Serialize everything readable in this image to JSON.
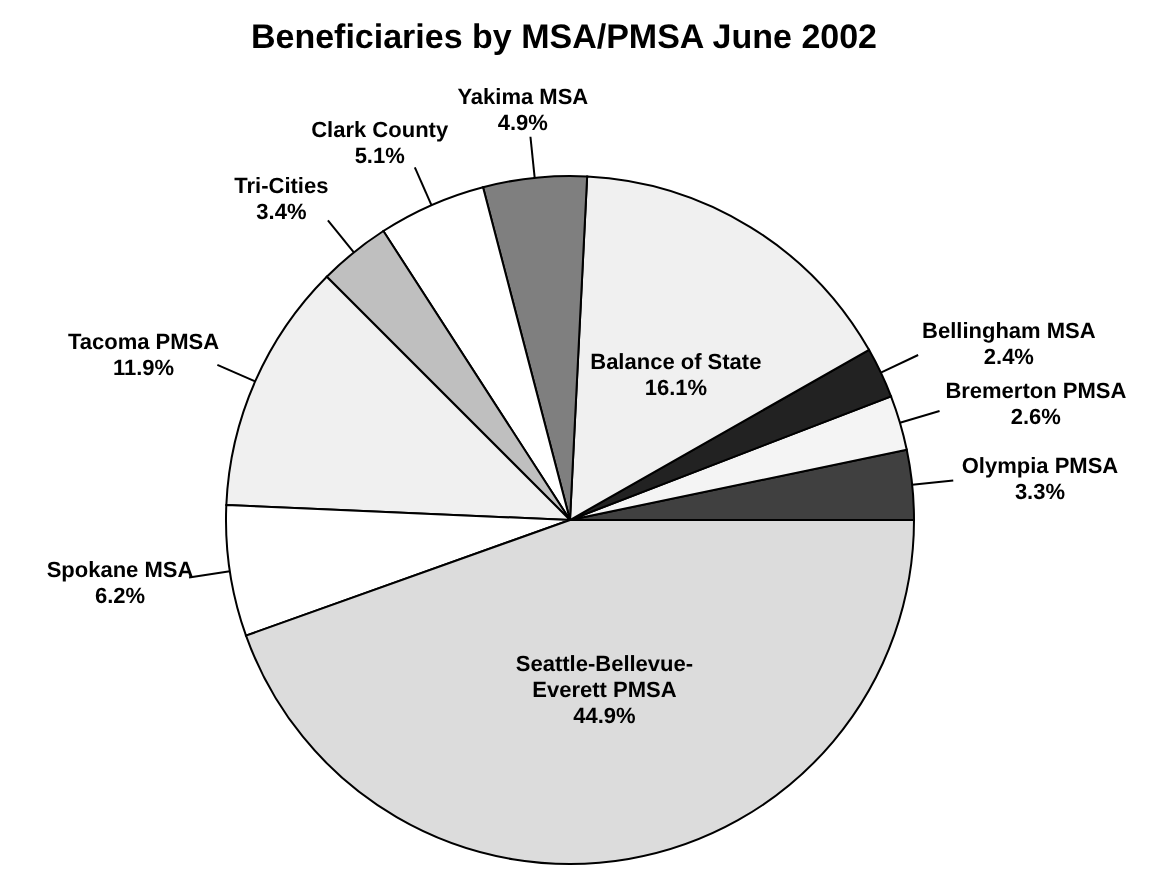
{
  "chart_data": {
    "type": "pie",
    "title": "Beneficiaries by MSA/PMSA June 2002",
    "categories": [
      "Olympia PMSA",
      "Bremerton PMSA",
      "Bellingham MSA",
      "Balance of State",
      "Yakima MSA",
      "Clark County",
      "Tri-Cities",
      "Tacoma PMSA",
      "Spokane MSA",
      "Seattle-Bellevue-Everett PMSA"
    ],
    "values": [
      3.3,
      2.6,
      2.4,
      16.1,
      4.9,
      5.1,
      3.4,
      11.9,
      6.2,
      44.9
    ],
    "colors": [
      "#404040",
      "#f4f4f4",
      "#222222",
      "#f0f0f0",
      "#7f7f7f",
      "#ffffff",
      "#bfbfbf",
      "#f0f0f0",
      "#ffffff",
      "#dcdcdc"
    ],
    "value_labels": [
      "3.3%",
      "2.6%",
      "2.4%",
      "16.1%",
      "4.9%",
      "5.1%",
      "3.4%",
      "11.9%",
      "6.2%",
      "44.9%"
    ]
  }
}
